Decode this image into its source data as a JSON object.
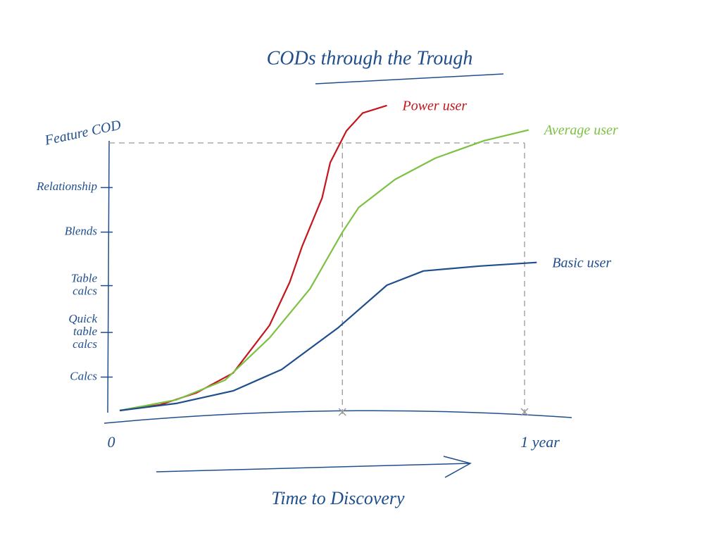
{
  "chart_data": {
    "type": "line",
    "title": "CODs through the Trough",
    "x_label": "Time to Discovery",
    "y_label": "Feature COD",
    "xlim": [
      0,
      1.1
    ],
    "xticks": [
      0,
      {
        "value": 1,
        "label": "1 year"
      }
    ],
    "ylim": [
      0,
      7.2
    ],
    "yticks": [
      {
        "value": 0.75,
        "label": "Calcs"
      },
      {
        "value": 1.75,
        "label": "Quick table calcs"
      },
      {
        "value": 2.8,
        "label": "Table calcs"
      },
      {
        "value": 4,
        "label": "Blends"
      },
      {
        "value": 5,
        "label": "Relationship"
      }
    ],
    "reference_lines": {
      "x": [
        0.55,
        1
      ],
      "y": 6
    },
    "series": [
      {
        "name": "Power user",
        "color": "#c4161c",
        "x": [
          0,
          0.1,
          0.19,
          0.28,
          0.37,
          0.42,
          0.45,
          0.5,
          0.52,
          0.56,
          0.6,
          0.66
        ],
        "values": [
          0,
          0.13,
          0.4,
          0.84,
          1.91,
          2.88,
          3.67,
          4.77,
          5.56,
          6.27,
          6.67,
          6.84
        ]
      },
      {
        "name": "Average user",
        "color": "#7dc142",
        "x": [
          0,
          0.14,
          0.26,
          0.37,
          0.47,
          0.55,
          0.59,
          0.68,
          0.78,
          0.9,
          1.01
        ],
        "values": [
          0,
          0.24,
          0.68,
          1.63,
          2.73,
          4.0,
          4.55,
          5.18,
          5.66,
          6.05,
          6.29
        ]
      },
      {
        "name": "Basic user",
        "color": "#1f4e8c",
        "x": [
          0,
          0.14,
          0.28,
          0.4,
          0.54,
          0.66,
          0.75,
          0.89,
          1.03
        ],
        "values": [
          0,
          0.16,
          0.44,
          0.92,
          1.86,
          2.81,
          3.13,
          3.24,
          3.32
        ]
      }
    ]
  }
}
